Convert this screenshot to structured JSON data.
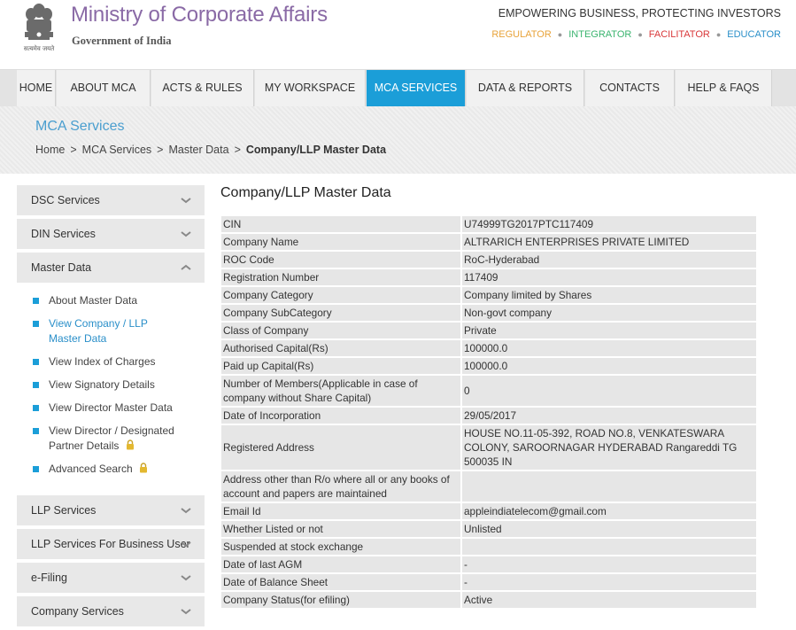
{
  "header": {
    "title": "Ministry of Corporate Affairs",
    "subtitle": "Government of India",
    "emblem_caption": "सत्यमेव जयते",
    "tagline": "EMPOWERING BUSINESS, PROTECTING INVESTORS",
    "roles": [
      {
        "label": "REGULATOR",
        "color": "#e8a33a"
      },
      {
        "label": "INTEGRATOR",
        "color": "#3bb46f"
      },
      {
        "label": "FACILITATOR",
        "color": "#d9383a"
      },
      {
        "label": "EDUCATOR",
        "color": "#2a8fc9"
      }
    ]
  },
  "nav": {
    "items": [
      "HOME",
      "ABOUT MCA",
      "ACTS & RULES",
      "MY WORKSPACE",
      "MCA SERVICES",
      "DATA & REPORTS",
      "CONTACTS",
      "HELP & FAQS"
    ],
    "active_index": 4
  },
  "band": {
    "title": "MCA Services",
    "breadcrumb": [
      "Home",
      "MCA Services",
      "Master Data",
      "Company/LLP Master Data"
    ],
    "separator": ">"
  },
  "sidebar": {
    "sections_top": [
      "DSC Services",
      "DIN Services",
      "Master Data"
    ],
    "sub_items": [
      {
        "label": "About Master Data",
        "active": false,
        "locked": false
      },
      {
        "label": "View Company / LLP Master Data",
        "active": true,
        "locked": false
      },
      {
        "label": "View Index of Charges",
        "active": false,
        "locked": false
      },
      {
        "label": "View Signatory Details",
        "active": false,
        "locked": false
      },
      {
        "label": "View Director Master Data",
        "active": false,
        "locked": false
      },
      {
        "label": "View Director / Designated Partner Details",
        "active": false,
        "locked": true
      },
      {
        "label": "Advanced Search",
        "active": false,
        "locked": true
      }
    ],
    "sections_bottom": [
      "LLP Services",
      "LLP Services For Business User",
      "e-Filing",
      "Company Services"
    ]
  },
  "content": {
    "title": "Company/LLP Master Data",
    "rows": [
      [
        "CIN",
        "U74999TG2017PTC117409"
      ],
      [
        "Company Name",
        "ALTRARICH ENTERPRISES PRIVATE LIMITED"
      ],
      [
        "ROC Code",
        "RoC-Hyderabad"
      ],
      [
        "Registration Number",
        "117409"
      ],
      [
        "Company Category",
        "Company limited by Shares"
      ],
      [
        "Company SubCategory",
        "Non-govt company"
      ],
      [
        "Class of Company",
        "Private"
      ],
      [
        "Authorised Capital(Rs)",
        "100000.0"
      ],
      [
        "Paid up Capital(Rs)",
        "100000.0"
      ],
      [
        "Number of Members(Applicable in case of company without Share Capital)",
        "0"
      ],
      [
        "Date of Incorporation",
        "29/05/2017"
      ],
      [
        "Registered Address",
        "HOUSE NO.11-05-392, ROAD NO.8, VENKATESWARA COLONY, SAROORNAGAR HYDERABAD Rangareddi TG 500035 IN"
      ],
      [
        "Address other than R/o where all or any books of account and papers are maintained",
        ""
      ],
      [
        "Email Id",
        "appleindiatelecom@gmail.com"
      ],
      [
        "Whether Listed or not",
        "Unlisted"
      ],
      [
        "Suspended at stock exchange",
        ""
      ],
      [
        "Date of last AGM",
        "-"
      ],
      [
        "Date of Balance Sheet",
        "-"
      ],
      [
        "Company Status(for efiling)",
        "Active"
      ]
    ]
  }
}
